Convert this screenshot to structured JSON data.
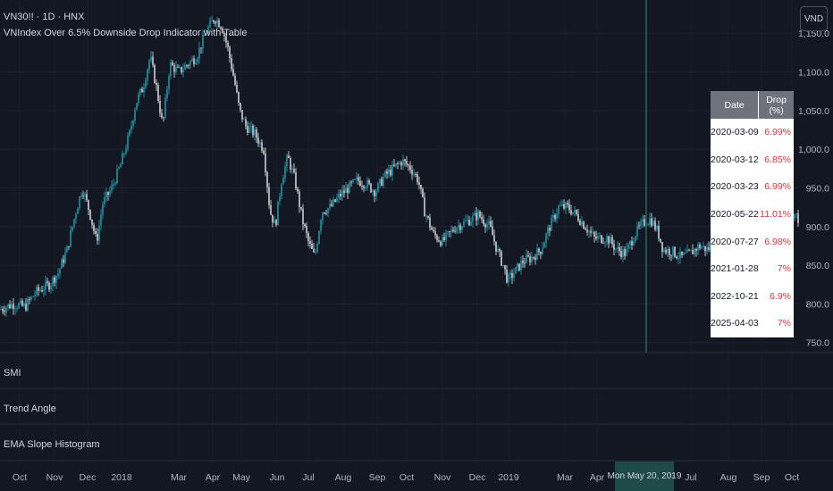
{
  "header": {
    "title": "VN30!! · 1D · HNX",
    "subtitle": "VNIndex Over 6.5% Downside Drop Indicator with Table"
  },
  "currency_label": "VND",
  "panes": [
    {
      "label": "SMI"
    },
    {
      "label": "Trend Angle"
    },
    {
      "label": "EMA Slope Histogram"
    }
  ],
  "table": {
    "headers": [
      "Date",
      "Drop (%)"
    ],
    "rows": [
      {
        "date": "2020-03-09",
        "drop": "6.99%"
      },
      {
        "date": "2020-03-12",
        "drop": "6.85%"
      },
      {
        "date": "2020-03-23",
        "drop": "6.99%"
      },
      {
        "date": "2020-05-22",
        "drop": "11.01%"
      },
      {
        "date": "2020-07-27",
        "drop": "6.98%"
      },
      {
        "date": "2021-01-28",
        "drop": "7%"
      },
      {
        "date": "2022-10-21",
        "drop": "6.9%"
      },
      {
        "date": "2025-04-03",
        "drop": "7%"
      }
    ]
  },
  "crosshair_date": "Mon May 20, 2019",
  "colors": {
    "background": "#131722",
    "up_candle": "#26a6b8",
    "down_candle": "#e8eaed",
    "crosshair": "#2a7a72",
    "drop_text": "#e0313f"
  },
  "chart_data": {
    "type": "candlestick",
    "ylim": [
      737,
      1193
    ],
    "y_ticks": [
      "1,150.0",
      "1,100.0",
      "1,050.0",
      "1,000.0",
      "950.0",
      "900.0",
      "850.0",
      "800.0",
      "750.0"
    ],
    "y_tick_values": [
      1150,
      1100,
      1050,
      1000,
      950,
      900,
      850,
      800,
      750
    ],
    "x_ticks": [
      "Oct",
      "Nov",
      "Dec",
      "2018",
      "Mar",
      "Apr",
      "May",
      "Jun",
      "Jul",
      "Aug",
      "Sep",
      "Oct",
      "Nov",
      "Dec",
      "2019",
      "Mar",
      "Apr",
      "Jul",
      "Aug",
      "Sep",
      "Oct"
    ],
    "x_tick_positions": [
      22,
      61,
      98,
      136,
      200,
      238,
      270,
      310,
      345,
      384,
      422,
      455,
      495,
      534,
      569,
      632,
      668,
      773,
      815,
      852,
      886
    ],
    "price_path": [
      [
        0,
        793
      ],
      [
        15,
        800
      ],
      [
        28,
        796
      ],
      [
        40,
        815
      ],
      [
        55,
        825
      ],
      [
        65,
        840
      ],
      [
        75,
        870
      ],
      [
        85,
        920
      ],
      [
        92,
        950
      ],
      [
        100,
        920
      ],
      [
        108,
        880
      ],
      [
        115,
        930
      ],
      [
        125,
        950
      ],
      [
        135,
        980
      ],
      [
        145,
        1020
      ],
      [
        152,
        1060
      ],
      [
        160,
        1080
      ],
      [
        168,
        1120
      ],
      [
        175,
        1080
      ],
      [
        182,
        1030
      ],
      [
        190,
        1110
      ],
      [
        200,
        1100
      ],
      [
        210,
        1110
      ],
      [
        220,
        1120
      ],
      [
        230,
        1150
      ],
      [
        240,
        1170
      ],
      [
        248,
        1160
      ],
      [
        255,
        1130
      ],
      [
        262,
        1090
      ],
      [
        268,
        1050
      ],
      [
        275,
        1030
      ],
      [
        285,
        1020
      ],
      [
        295,
        1000
      ],
      [
        302,
        920
      ],
      [
        308,
        900
      ],
      [
        315,
        960
      ],
      [
        322,
        990
      ],
      [
        330,
        960
      ],
      [
        338,
        910
      ],
      [
        345,
        880
      ],
      [
        352,
        860
      ],
      [
        360,
        920
      ],
      [
        370,
        925
      ],
      [
        380,
        940
      ],
      [
        390,
        950
      ],
      [
        400,
        960
      ],
      [
        410,
        955
      ],
      [
        420,
        945
      ],
      [
        430,
        965
      ],
      [
        440,
        975
      ],
      [
        450,
        985
      ],
      [
        460,
        975
      ],
      [
        468,
        960
      ],
      [
        475,
        920
      ],
      [
        485,
        890
      ],
      [
        495,
        880
      ],
      [
        510,
        900
      ],
      [
        520,
        905
      ],
      [
        535,
        915
      ],
      [
        548,
        900
      ],
      [
        556,
        870
      ],
      [
        563,
        850
      ],
      [
        568,
        830
      ],
      [
        575,
        840
      ],
      [
        585,
        855
      ],
      [
        595,
        860
      ],
      [
        605,
        870
      ],
      [
        615,
        900
      ],
      [
        625,
        925
      ],
      [
        635,
        925
      ],
      [
        645,
        915
      ],
      [
        655,
        900
      ],
      [
        665,
        885
      ],
      [
        680,
        885
      ],
      [
        690,
        870
      ],
      [
        700,
        865
      ],
      [
        710,
        890
      ],
      [
        720,
        905
      ],
      [
        728,
        910
      ],
      [
        736,
        893
      ],
      [
        742,
        870
      ],
      [
        752,
        868
      ],
      [
        762,
        860
      ],
      [
        772,
        865
      ],
      [
        782,
        875
      ],
      [
        792,
        870
      ],
      [
        800,
        885
      ],
      [
        815,
        890
      ],
      [
        825,
        895
      ],
      [
        835,
        890
      ],
      [
        845,
        895
      ],
      [
        855,
        900
      ],
      [
        865,
        910
      ],
      [
        875,
        915
      ],
      [
        885,
        920
      ],
      [
        893,
        910
      ]
    ]
  }
}
